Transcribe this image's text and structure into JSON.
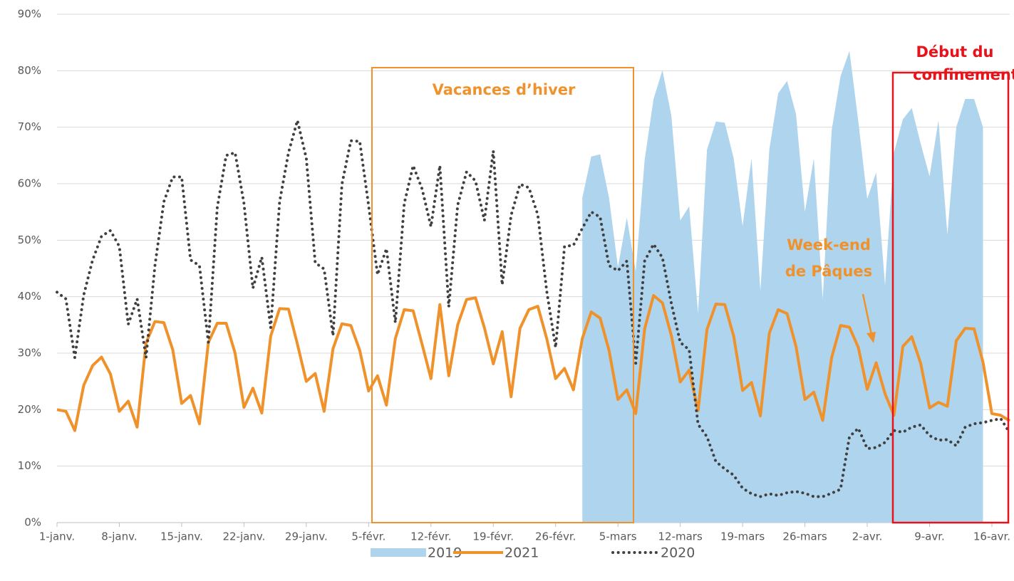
{
  "chart_data": {
    "type": "line",
    "categories": [
      "1-janv.",
      null,
      null,
      null,
      null,
      null,
      null,
      "8-janv.",
      null,
      null,
      null,
      null,
      null,
      null,
      "15-janv.",
      null,
      null,
      null,
      null,
      null,
      null,
      "22-janv.",
      null,
      null,
      null,
      null,
      null,
      null,
      "29-janv.",
      null,
      null,
      null,
      null,
      null,
      null,
      "5-févr.",
      null,
      null,
      null,
      null,
      null,
      null,
      "12-févr.",
      null,
      null,
      null,
      null,
      null,
      null,
      "19-févr.",
      null,
      null,
      null,
      null,
      null,
      null,
      "26-févr.",
      null,
      null,
      null,
      null,
      null,
      null,
      "5-mars",
      null,
      null,
      null,
      null,
      null,
      null,
      "12-mars",
      null,
      null,
      null,
      null,
      null,
      null,
      "19-mars",
      null,
      null,
      null,
      null,
      null,
      null,
      "26-mars",
      null,
      null,
      null,
      null,
      null,
      null,
      "2-avr.",
      null,
      null,
      null,
      null,
      null,
      null,
      "9-avr.",
      null,
      null,
      null,
      null,
      null,
      null,
      "16-avr.",
      null,
      null
    ],
    "series": [
      {
        "name": "2019",
        "kind": "area",
        "color": "#aed4ee",
        "values": [
          null,
          null,
          null,
          null,
          null,
          null,
          null,
          null,
          null,
          null,
          null,
          null,
          null,
          null,
          null,
          null,
          null,
          null,
          null,
          null,
          null,
          null,
          null,
          null,
          null,
          null,
          null,
          null,
          null,
          null,
          null,
          null,
          null,
          null,
          null,
          null,
          null,
          null,
          null,
          null,
          null,
          null,
          null,
          null,
          null,
          null,
          null,
          null,
          null,
          null,
          null,
          null,
          null,
          null,
          null,
          null,
          null,
          null,
          null,
          57.5,
          64.8,
          65.2,
          57.5,
          45.2,
          54,
          44.5,
          64.2,
          75,
          80.1,
          72,
          53.5,
          56,
          37,
          66,
          71,
          70.8,
          64.5,
          52.5,
          64.5,
          41,
          66,
          76,
          78.2,
          72.3,
          55,
          64.5,
          39.5,
          69.4,
          79,
          83.5,
          71,
          57.3,
          62,
          42,
          65.5,
          71.4,
          73.4,
          67.1,
          61.3,
          71.2,
          51,
          70,
          75,
          75,
          70,
          null,
          null,
          null
        ]
      },
      {
        "name": "2021",
        "kind": "line",
        "color": "#f0922b",
        "values": [
          20,
          19.7,
          16.3,
          24.3,
          27.8,
          29.3,
          26.3,
          19.7,
          21.5,
          16.9,
          31.8,
          35.6,
          35.4,
          30.6,
          21.1,
          22.5,
          17.5,
          31.9,
          35.3,
          35.3,
          30,
          20.4,
          23.8,
          19.4,
          33,
          37.9,
          37.8,
          31.6,
          25,
          26.4,
          19.7,
          30.8,
          35.2,
          34.9,
          30.5,
          23.3,
          26,
          20.8,
          32.6,
          37.7,
          37.5,
          31.6,
          25.5,
          38.6,
          26,
          35,
          39.5,
          39.8,
          34.5,
          28.1,
          33.8,
          22.3,
          34.4,
          37.7,
          38.3,
          32.6,
          25.5,
          27.3,
          23.5,
          32.6,
          37.3,
          36.2,
          30.5,
          21.8,
          23.5,
          19.3,
          34.3,
          40.2,
          38.9,
          33.1,
          24.9,
          27,
          19.8,
          34.2,
          38.7,
          38.6,
          33,
          23.4,
          24.8,
          18.9,
          33.5,
          37.7,
          37,
          31.2,
          21.8,
          23.1,
          18.1,
          29.2,
          34.9,
          34.6,
          31,
          23.6,
          28.3,
          22.8,
          19,
          31.2,
          32.9,
          28.2,
          20.3,
          21.3,
          20.6,
          32.2,
          34.4,
          34.3,
          28.4,
          19.3,
          19,
          18
        ]
      },
      {
        "name": "2020",
        "kind": "dotted",
        "color": "#404040",
        "values": [
          40.8,
          39.6,
          29.2,
          40.3,
          46.5,
          50.7,
          51.7,
          48.9,
          35.1,
          39.6,
          29.2,
          45.5,
          56.8,
          61.2,
          61.2,
          46.5,
          45.5,
          31.9,
          55.8,
          65,
          65.5,
          56.5,
          41.5,
          47,
          34.5,
          56.8,
          65.5,
          71.2,
          64.5,
          46,
          44.9,
          33.1,
          59.9,
          67.6,
          67.5,
          56.1,
          43.9,
          48.5,
          35.4,
          56.5,
          63.2,
          59.1,
          52.4,
          63.2,
          38.2,
          56.2,
          62.1,
          60.5,
          53.5,
          65.8,
          42.1,
          54.4,
          59.9,
          59.3,
          54.5,
          41,
          31,
          48.9,
          49.1,
          52.1,
          55,
          54.1,
          45.5,
          44.6,
          46.3,
          28.2,
          46.3,
          49.3,
          46.9,
          38.8,
          31.9,
          30.6,
          17.4,
          15.2,
          10.8,
          9.5,
          8.4,
          6.1,
          5.1,
          4.6,
          5.1,
          4.8,
          5.3,
          5.5,
          5.2,
          4.6,
          4.6,
          5.2,
          5.9,
          15.2,
          16.7,
          13.1,
          13.3,
          14.2,
          16.3,
          16,
          16.9,
          17.3,
          15.4,
          14.6,
          14.7,
          13.6,
          16.9,
          17.5,
          17.7,
          18.1,
          18.4,
          15.9
        ]
      }
    ],
    "ylim": [
      0,
      90
    ],
    "yticks": [
      {
        "value": 0,
        "label": "0%"
      },
      {
        "value": 10,
        "label": "10%"
      },
      {
        "value": 20,
        "label": "20%"
      },
      {
        "value": 30,
        "label": "30%"
      },
      {
        "value": 40,
        "label": "40%"
      },
      {
        "value": 50,
        "label": "50%"
      },
      {
        "value": 60,
        "label": "60%"
      },
      {
        "value": 70,
        "label": "70%"
      },
      {
        "value": 80,
        "label": "80%"
      },
      {
        "value": 90,
        "label": "90%"
      }
    ],
    "grid": true,
    "annotations": [
      "Vacances d’hiver",
      "Week-end",
      "de Pâques",
      "Début du",
      "confinement"
    ],
    "legend": "bottom"
  }
}
